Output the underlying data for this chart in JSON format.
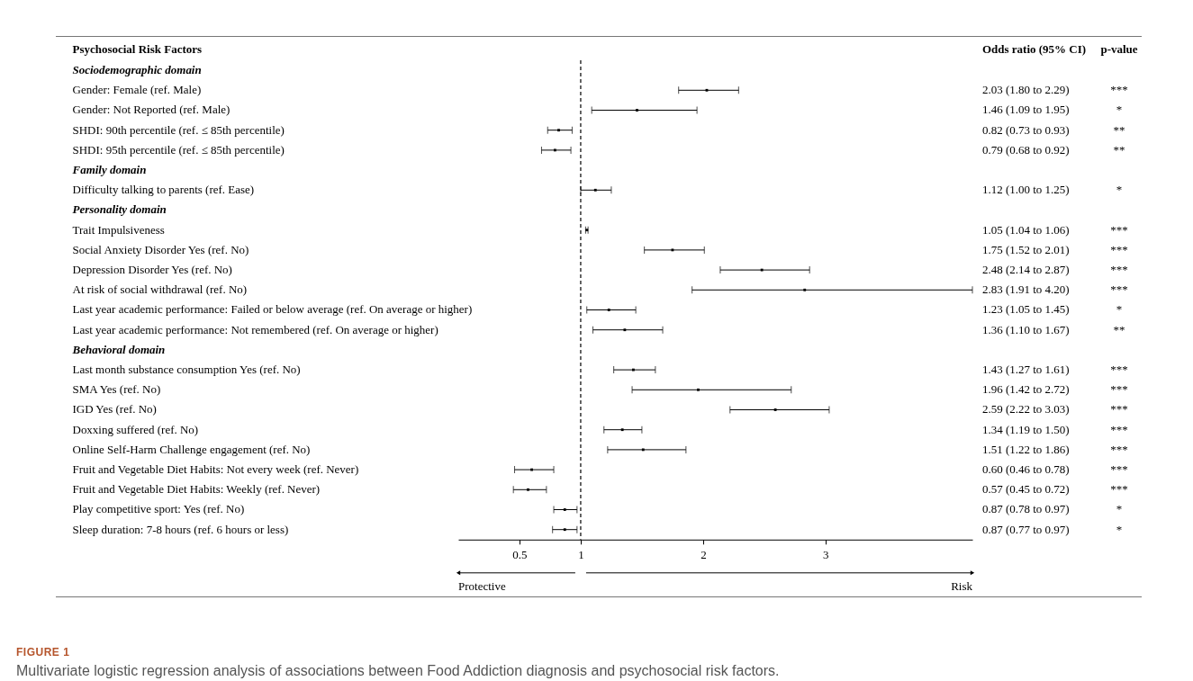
{
  "chart_data": {
    "type": "scatter",
    "orientation": "horizontal",
    "title": "FIGURE 1",
    "subtitle": "Multivariate logistic regression analysis of associations between Food Addiction diagnosis and psychosocial risk factors.",
    "ylabel": "Psychosocial Risk Factors",
    "color": "#000000",
    "categories": [
      "Sociodemographic domain",
      "Gender: Female (ref. Male)",
      "Gender: Not Reported (ref. Male)",
      "SHDI: 90th percentile (ref. ≤ 85th percentile)",
      "SHDI: 95th percentile (ref. ≤ 85th percentile)",
      "Family domain",
      "Difficulty talking to parents (ref. Ease)",
      "Personality domain",
      "Trait Impulsiveness",
      "Social Anxiety Disorder Yes (ref. No)",
      "Depression Disorder Yes (ref. No)",
      "At risk of social withdrawal (ref. No)",
      "Last year academic performance: Failed or  below average (ref. On average or higher)",
      "Last year academic performance: Not remembered (ref. On average or higher)",
      "Behavioral domain",
      "Last month substance consumption Yes (ref. No)",
      "SMA Yes (ref. No)",
      "IGD Yes (ref. No)",
      "Doxxing suffered  (ref. No)",
      "Online Self-Harm Challenge engagement (ref. No)",
      "Fruit and Vegetable Diet Habits: Not every week (ref. Never)",
      "Fruit and Vegetable Diet Habits: Weekly (ref. Never)",
      "Play competitive sport: Yes (ref. No)",
      "Sleep duration: 7-8 hours (ref.  6 hours or less)"
    ],
    "values": [
      null,
      2.03,
      1.46,
      0.82,
      0.79,
      null,
      1.12,
      null,
      1.05,
      1.75,
      2.48,
      2.83,
      1.23,
      1.36,
      null,
      1.43,
      1.96,
      2.59,
      1.34,
      1.51,
      0.6,
      0.57,
      0.87,
      0.87
    ],
    "errors": [
      null,
      [
        1.8,
        2.29
      ],
      [
        1.09,
        1.95
      ],
      [
        0.73,
        0.93
      ],
      [
        0.68,
        0.92
      ],
      null,
      [
        1.0,
        1.25
      ],
      null,
      [
        1.04,
        1.06
      ],
      [
        1.52,
        2.01
      ],
      [
        2.14,
        2.87
      ],
      [
        1.91,
        4.2
      ],
      [
        1.05,
        1.45
      ],
      [
        1.1,
        1.67
      ],
      null,
      [
        1.27,
        1.61
      ],
      [
        1.42,
        2.72
      ],
      [
        2.22,
        3.03
      ],
      [
        1.19,
        1.5
      ],
      [
        1.22,
        1.86
      ],
      [
        0.46,
        0.78
      ],
      [
        0.45,
        0.72
      ],
      [
        0.78,
        0.97
      ],
      [
        0.77,
        0.97
      ]
    ],
    "value_labels": [
      null,
      "2.03 (1.80 to 2.29)",
      "1.46 (1.09 to 1.95)",
      "0.82 (0.73 to 0.93)",
      "0.79 (0.68 to 0.92)",
      null,
      "1.12 (1.00 to 1.25)",
      null,
      "1.05 (1.04 to 1.06)",
      "1.75 (1.52 to 2.01)",
      "2.48 (2.14 to 2.87)",
      "2.83 (1.91 to 4.20)",
      "1.23 (1.05 to 1.45)",
      "1.36 (1.10 to 1.67)",
      null,
      "1.43 (1.27 to 1.61)",
      "1.96 (1.42 to 2.72)",
      "2.59 (2.22 to 3.03)",
      "1.34 (1.19 to 1.50)",
      "1.51 (1.22 to 1.86)",
      "0.60 (0.46 to 0.78)",
      "0.57 (0.45 to 0.72)",
      "0.87 (0.78 to 0.97)",
      "0.87 (0.77 to 0.97)"
    ],
    "xlim": [
      0,
      4.2
    ],
    "xticks": [
      0.5,
      1,
      2,
      3
    ],
    "grid": false,
    "marker": "square",
    "ref_lines": [
      {
        "axis": "x",
        "value": 1,
        "line_style": "dashed",
        "color": "#000000"
      }
    ],
    "annotations": [
      "Odds ratio (95% CI)",
      "p-value",
      "Protective",
      "Risk",
      "***",
      "*",
      "**",
      "**",
      "*",
      "***",
      "***",
      "***",
      "***",
      "*",
      "**",
      "***",
      "***",
      "***",
      "***",
      "***",
      "***",
      "***",
      "*",
      "*"
    ]
  }
}
